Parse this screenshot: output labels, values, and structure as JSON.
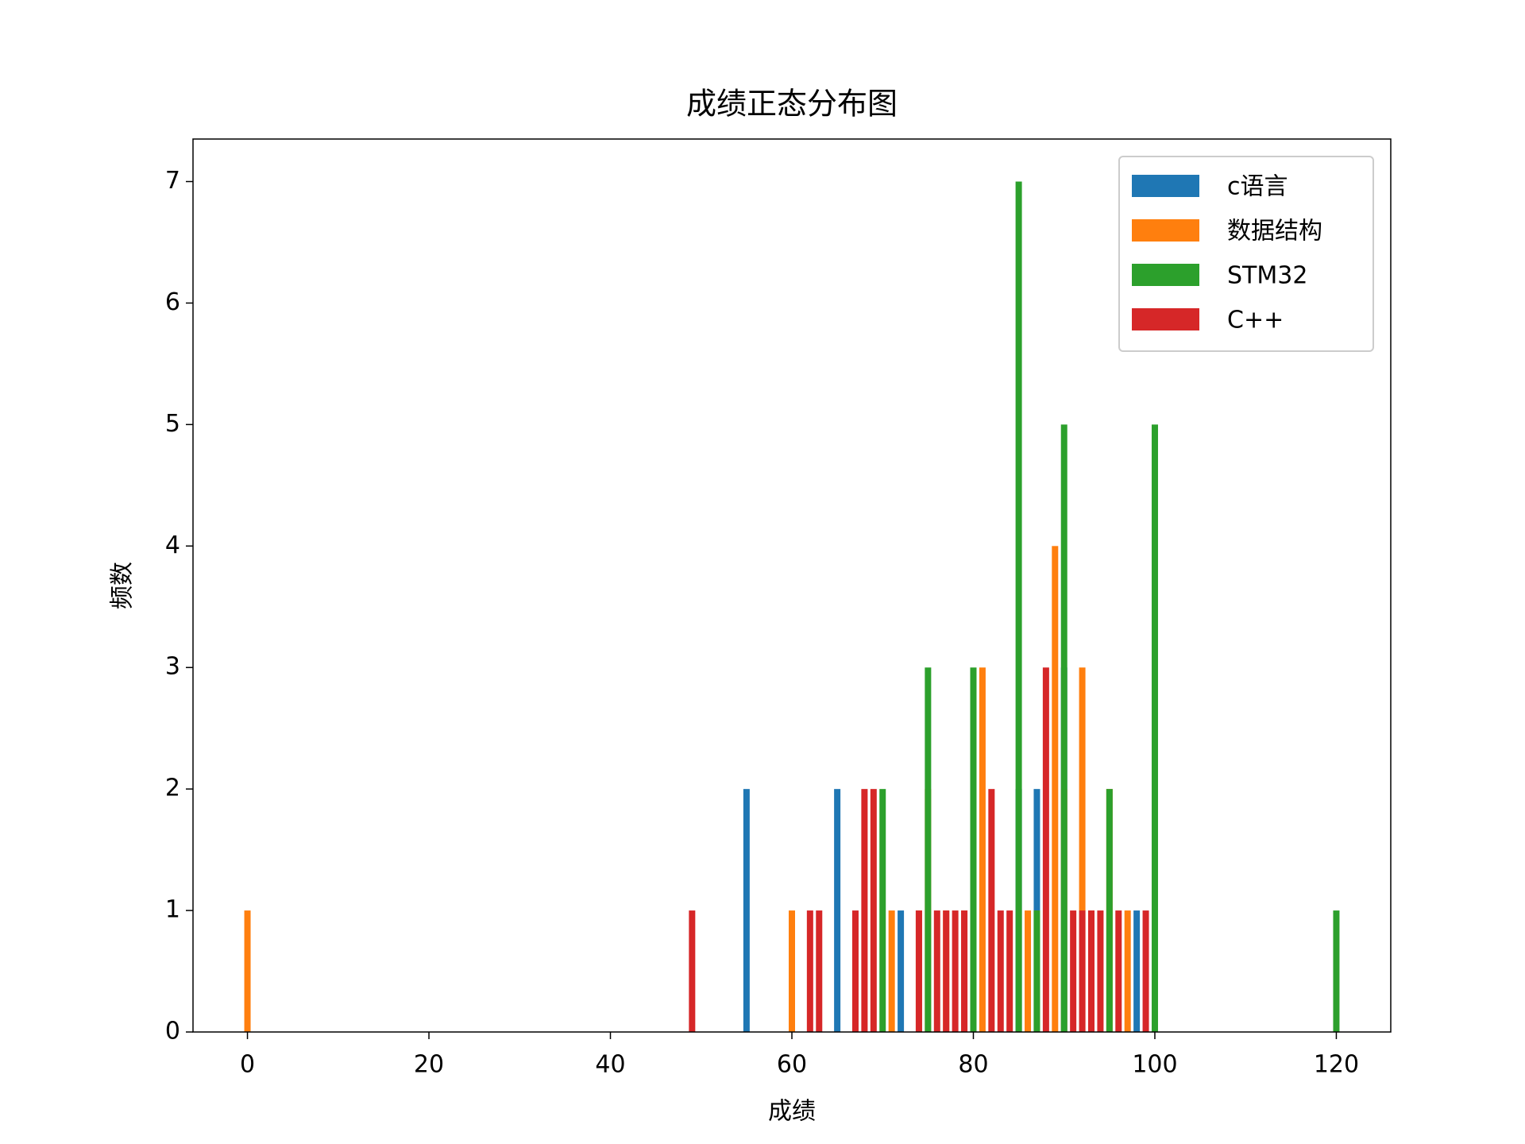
{
  "chart_data": {
    "type": "bar",
    "title": "成绩正态分布图",
    "x_label": "成绩",
    "y_label": "频数",
    "xlim": [
      -6,
      126
    ],
    "ylim": [
      0,
      7.35
    ],
    "xticks": [
      0,
      20,
      40,
      60,
      80,
      100,
      120
    ],
    "yticks": [
      0,
      1,
      2,
      3,
      4,
      5,
      6,
      7
    ],
    "legend": "upper right",
    "grid": false,
    "series": [
      {
        "name": "c语言",
        "color": "#1f77b4",
        "x": [
          55,
          65,
          72,
          85,
          87,
          90,
          98
        ],
        "values": [
          2,
          2,
          1,
          2,
          2,
          3,
          1
        ]
      },
      {
        "name": "数据结构",
        "color": "#ff7f0e",
        "x": [
          0,
          60,
          71,
          74,
          75,
          77,
          79,
          81,
          86,
          87,
          89,
          90,
          92,
          93,
          95,
          97
        ],
        "values": [
          1,
          1,
          1,
          1,
          2,
          1,
          1,
          3,
          1,
          1,
          4,
          2,
          3,
          1,
          2,
          1
        ]
      },
      {
        "name": "STM32",
        "color": "#2ca02c",
        "x": [
          70,
          75,
          80,
          85,
          87,
          90,
          95,
          100,
          120
        ],
        "values": [
          2,
          3,
          3,
          7,
          1,
          5,
          2,
          5,
          1
        ]
      },
      {
        "name": "C++",
        "color": "#d62728",
        "x": [
          49,
          62,
          63,
          67,
          68,
          69,
          74,
          76,
          77,
          78,
          79,
          82,
          83,
          84,
          88,
          91,
          92,
          93,
          94,
          96,
          99
        ],
        "values": [
          1,
          1,
          1,
          1,
          2,
          2,
          1,
          1,
          1,
          1,
          1,
          2,
          1,
          1,
          3,
          1,
          1,
          1,
          1,
          1,
          1
        ]
      }
    ]
  }
}
